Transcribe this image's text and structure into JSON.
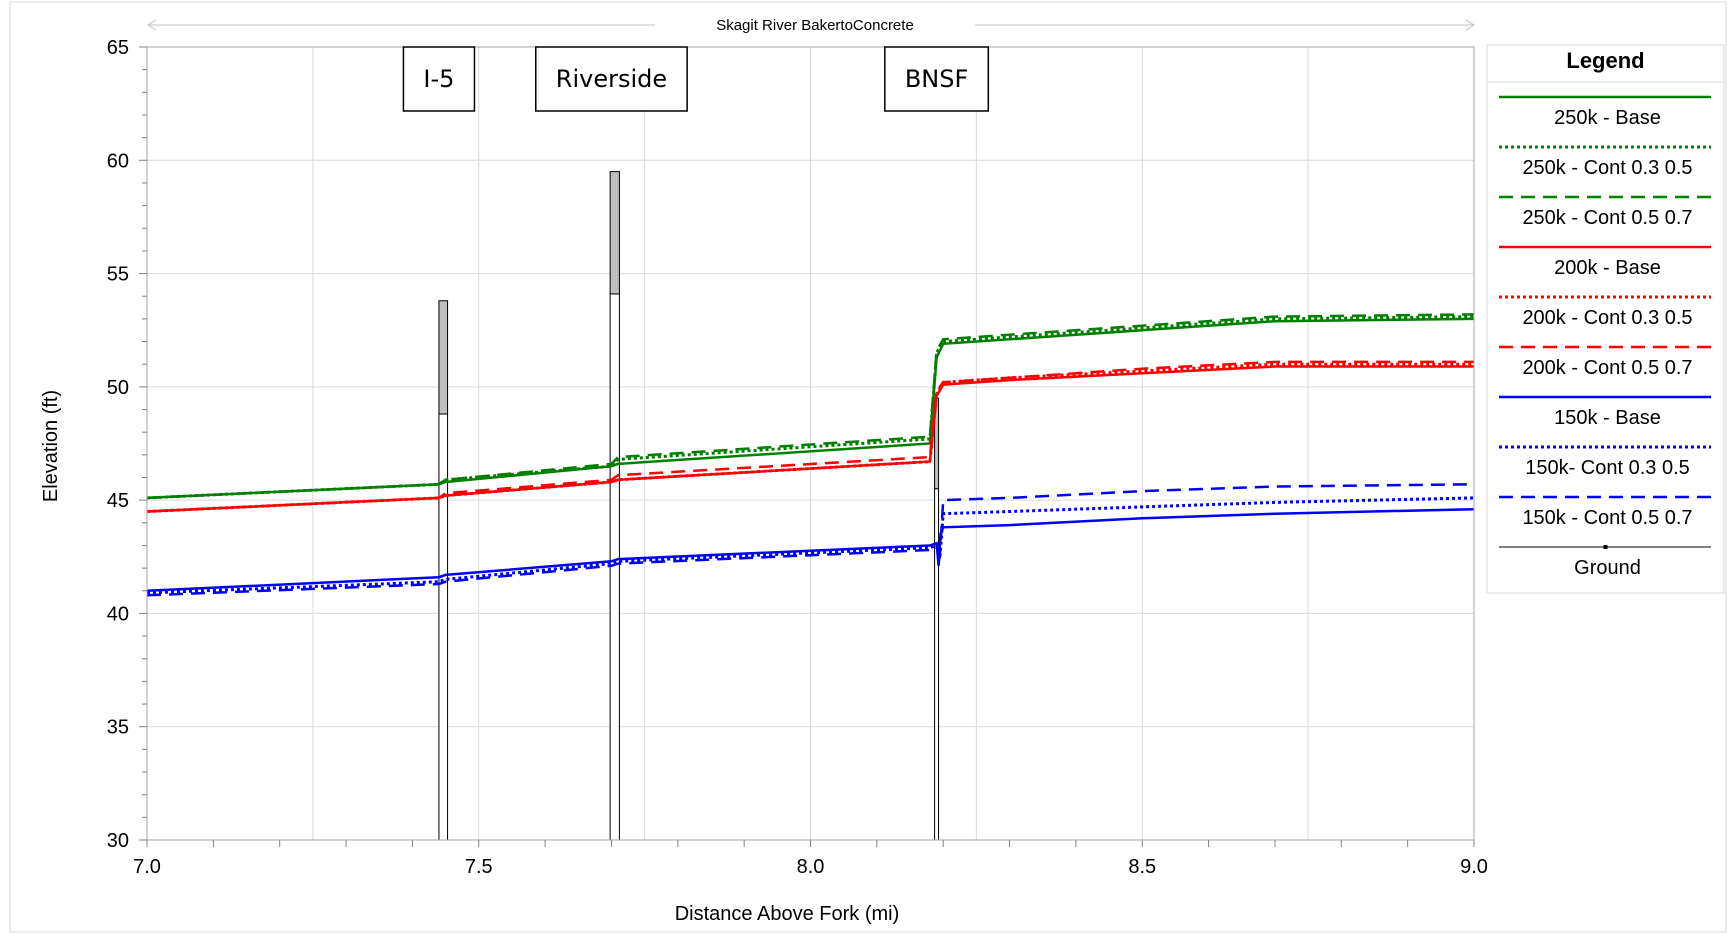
{
  "chart_data": {
    "type": "line",
    "title": "Skagit River BakertoConcrete",
    "xlabel": "Distance Above Fork (mi)",
    "ylabel": "Elevation (ft)",
    "xlim": [
      7.0,
      9.0
    ],
    "ylim": [
      30,
      65
    ],
    "x_ticks": [
      "7.0",
      "7.5",
      "8.0",
      "8.5",
      "9.0"
    ],
    "y_ticks": [
      "30",
      "35",
      "40",
      "45",
      "50",
      "55",
      "60",
      "65"
    ],
    "grid": true,
    "legend_title": "Legend",
    "legend_position": "right",
    "bridge_labels": [
      {
        "text": "I-5",
        "x": 7.44
      },
      {
        "text": "Riverside",
        "x": 7.7
      },
      {
        "text": "BNSF",
        "x": 8.19
      }
    ],
    "bridges": [
      {
        "name": "I-5",
        "x_left": 7.44,
        "x_right": 7.453,
        "deck_low": 48.8,
        "deck_high": 53.8
      },
      {
        "name": "Riverside",
        "x_left": 7.698,
        "x_right": 7.712,
        "deck_low": 54.1,
        "deck_high": 59.5
      },
      {
        "name": "BNSF",
        "x_left": 8.187,
        "x_right": 8.193,
        "deck_low": 45.5,
        "deck_high": 49.5
      }
    ],
    "series": [
      {
        "name": "250k - Base",
        "color": "#008000",
        "dash": "solid",
        "x": [
          7.0,
          7.44,
          7.45,
          7.7,
          7.71,
          8.18,
          8.19,
          8.2,
          8.3,
          8.5,
          8.7,
          9.0
        ],
        "y": [
          45.1,
          45.7,
          45.8,
          46.5,
          46.6,
          47.5,
          51.3,
          51.9,
          52.1,
          52.5,
          52.9,
          53.0
        ]
      },
      {
        "name": "250k - Cont 0.3 0.5",
        "color": "#008000",
        "dash": "dot",
        "x": [
          7.0,
          7.44,
          7.45,
          7.7,
          7.71,
          8.18,
          8.19,
          8.2,
          8.3,
          8.5,
          8.7,
          9.0
        ],
        "y": [
          45.1,
          45.7,
          45.9,
          46.5,
          46.8,
          47.7,
          51.5,
          52.0,
          52.2,
          52.6,
          53.0,
          53.1
        ]
      },
      {
        "name": "250k - Cont 0.5 0.7",
        "color": "#008000",
        "dash": "dash",
        "x": [
          7.0,
          7.44,
          7.45,
          7.7,
          7.71,
          8.18,
          8.19,
          8.2,
          8.3,
          8.5,
          8.7,
          9.0
        ],
        "y": [
          45.1,
          45.7,
          45.9,
          46.6,
          46.9,
          47.8,
          51.6,
          52.1,
          52.3,
          52.7,
          53.1,
          53.2
        ]
      },
      {
        "name": "200k - Base",
        "color": "#ff0000",
        "dash": "solid",
        "x": [
          7.0,
          7.44,
          7.45,
          7.7,
          7.71,
          8.18,
          8.19,
          8.2,
          8.3,
          8.5,
          8.7,
          9.0
        ],
        "y": [
          44.5,
          45.1,
          45.2,
          45.8,
          45.9,
          46.7,
          49.6,
          50.1,
          50.3,
          50.6,
          50.9,
          50.9
        ]
      },
      {
        "name": "200k - Cont 0.3 0.5",
        "color": "#ff0000",
        "dash": "dot",
        "x": [
          7.0,
          7.44,
          7.45,
          7.7,
          7.71,
          8.18,
          8.19,
          8.2,
          8.3,
          8.5,
          8.7,
          9.0
        ],
        "y": [
          44.5,
          45.1,
          45.2,
          45.8,
          45.9,
          46.7,
          49.7,
          50.2,
          50.4,
          50.7,
          51.0,
          51.0
        ]
      },
      {
        "name": "200k - Cont 0.5 0.7",
        "color": "#ff0000",
        "dash": "dash",
        "x": [
          7.0,
          7.44,
          7.45,
          7.7,
          7.71,
          8.18,
          8.19,
          8.2,
          8.3,
          8.5,
          8.7,
          9.0
        ],
        "y": [
          44.5,
          45.1,
          45.3,
          45.9,
          46.1,
          46.9,
          49.8,
          50.2,
          50.4,
          50.8,
          51.1,
          51.1
        ]
      },
      {
        "name": "150k - Base",
        "color": "#0000ff",
        "dash": "solid",
        "x": [
          7.0,
          7.44,
          7.45,
          7.7,
          7.71,
          8.18,
          8.19,
          8.193,
          8.196,
          8.2,
          8.3,
          8.5,
          8.7,
          9.0
        ],
        "y": [
          41.0,
          41.6,
          41.7,
          42.3,
          42.4,
          43.0,
          43.1,
          42.1,
          43.5,
          43.8,
          43.9,
          44.2,
          44.4,
          44.6
        ]
      },
      {
        "name": "150k- Cont 0.3 0.5",
        "color": "#0000ff",
        "dash": "dot",
        "x": [
          7.0,
          7.44,
          7.45,
          7.7,
          7.71,
          8.18,
          8.19,
          8.195,
          8.2,
          8.3,
          8.5,
          8.7,
          9.0
        ],
        "y": [
          40.9,
          41.4,
          41.5,
          42.2,
          42.3,
          42.9,
          43.0,
          42.5,
          44.4,
          44.5,
          44.7,
          44.9,
          45.1
        ]
      },
      {
        "name": "150k - Cont 0.5 0.7",
        "color": "#0000ff",
        "dash": "dash",
        "x": [
          7.0,
          7.44,
          7.45,
          7.7,
          7.71,
          8.18,
          8.19,
          8.195,
          8.2,
          8.3,
          8.5,
          8.7,
          9.0
        ],
        "y": [
          40.8,
          41.3,
          41.4,
          42.1,
          42.2,
          42.8,
          42.9,
          42.6,
          45.0,
          45.1,
          45.4,
          45.6,
          45.7
        ]
      }
    ],
    "ground_legend": {
      "name": "Ground",
      "color": "#000000"
    }
  }
}
